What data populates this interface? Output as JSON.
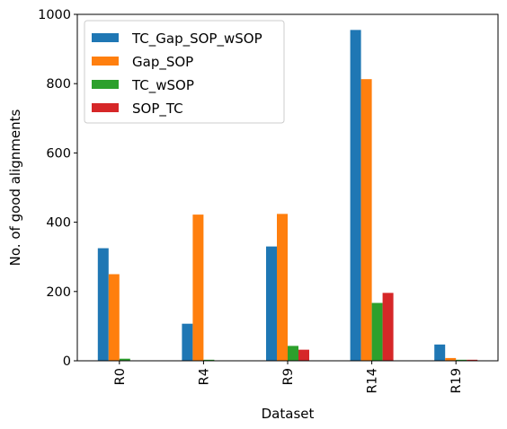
{
  "chart_data": {
    "type": "bar",
    "title": "",
    "xlabel": "Dataset",
    "ylabel": "No. of good alignments",
    "categories": [
      "R0",
      "R4",
      "R9",
      "R14",
      "R19"
    ],
    "ylim": [
      0,
      1000
    ],
    "yticks": [
      0,
      200,
      400,
      600,
      800,
      1000
    ],
    "grid": false,
    "legend_placement": "top-left",
    "series": [
      {
        "name": "TC_Gap_SOP_wSOP",
        "color": "#1f77b4",
        "values": [
          325,
          107,
          330,
          955,
          47
        ]
      },
      {
        "name": "Gap_SOP",
        "color": "#ff7f0e",
        "values": [
          250,
          422,
          424,
          813,
          8
        ]
      },
      {
        "name": "TC_wSOP",
        "color": "#2ca02c",
        "values": [
          6,
          3,
          43,
          167,
          3
        ]
      },
      {
        "name": "SOP_TC",
        "color": "#d62728",
        "values": [
          0,
          0,
          32,
          196,
          3
        ]
      }
    ]
  }
}
